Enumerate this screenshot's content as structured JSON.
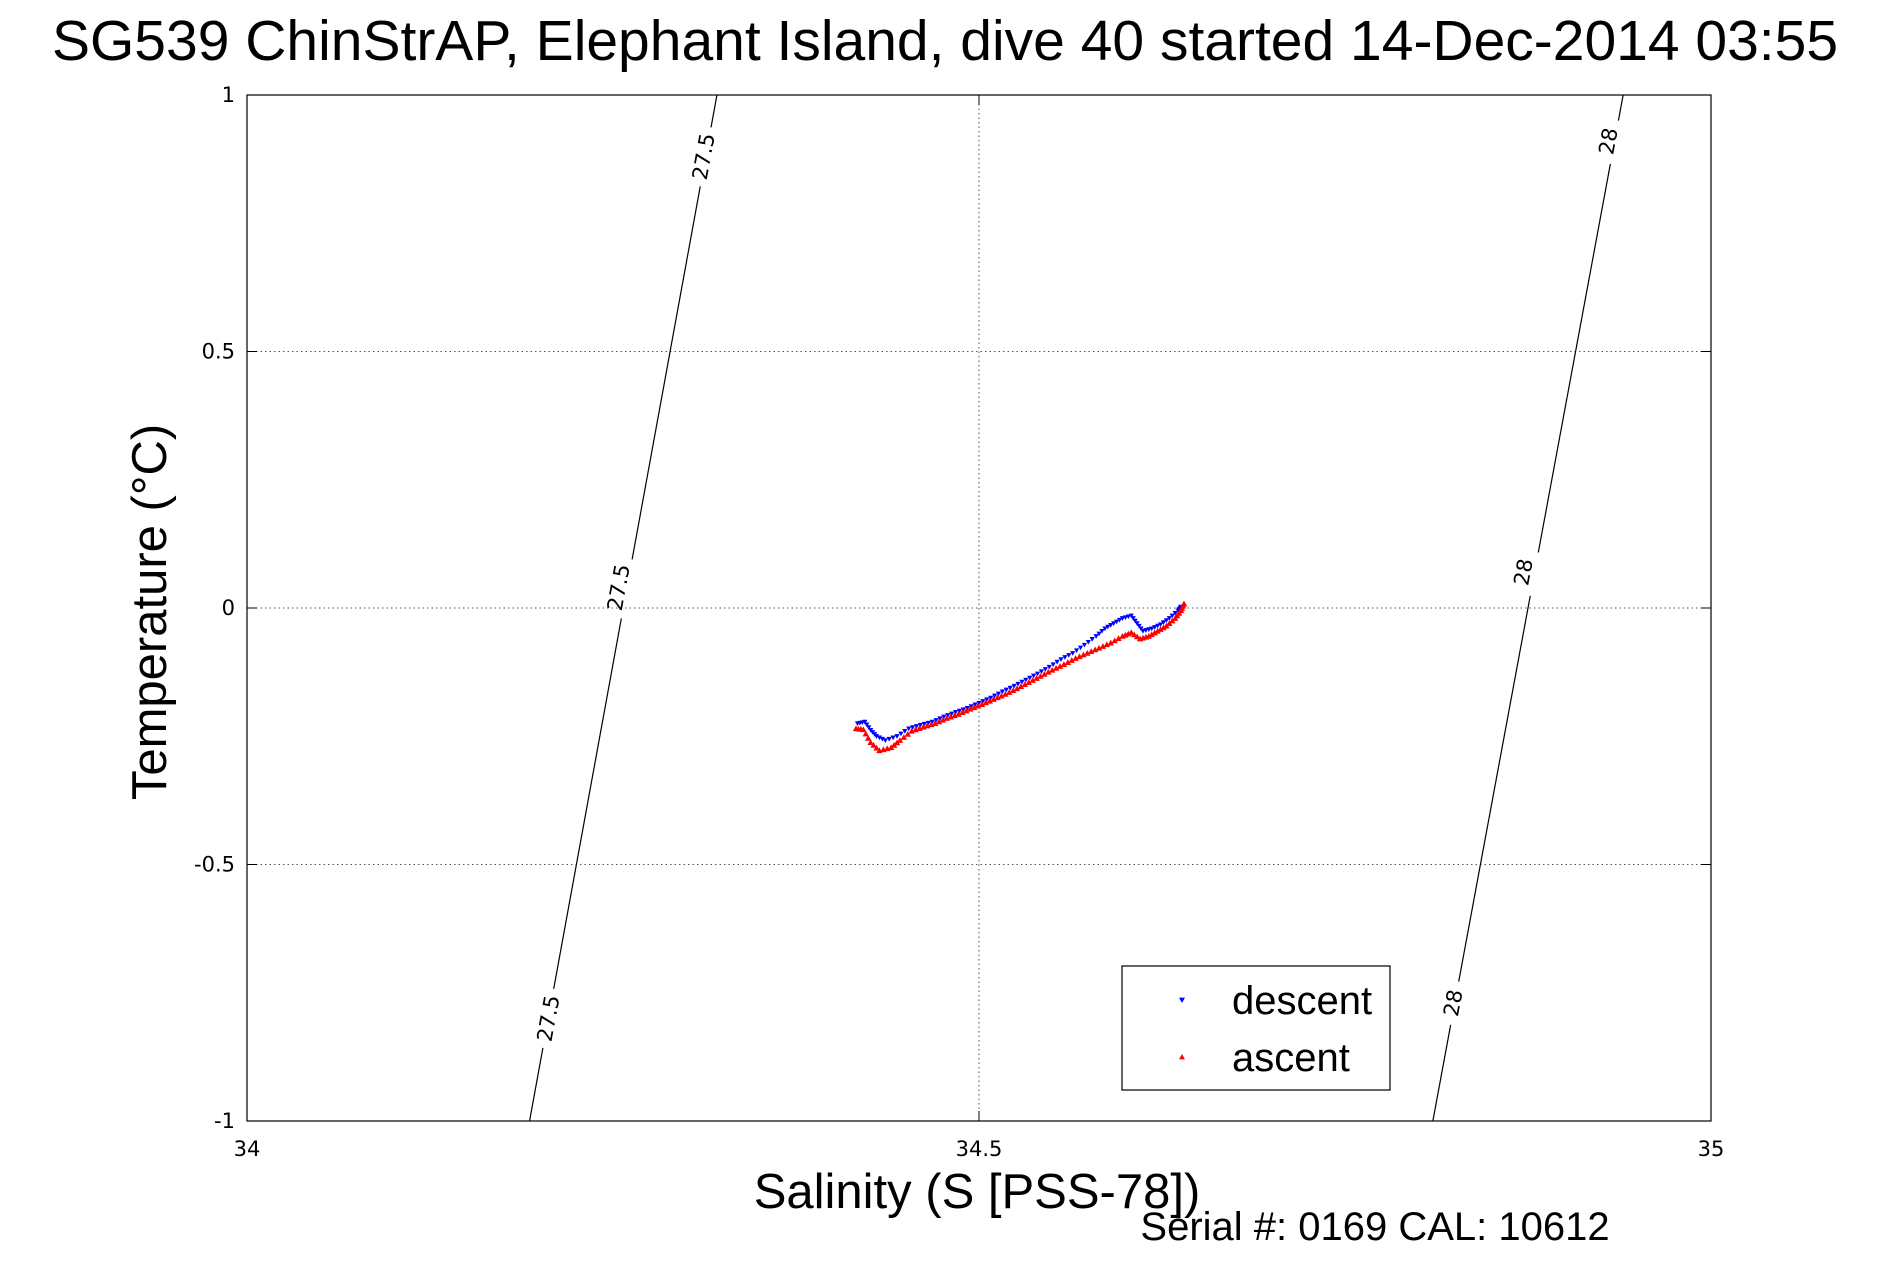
{
  "chart_data": {
    "type": "scatter",
    "title": "SG539 ChinStrAP, Elephant Island, dive 40 started 14-Dec-2014 03:55",
    "xlabel": "Salinity (S [PSS-78])",
    "ylabel": "Temperature (°C)",
    "xlim": [
      34,
      35
    ],
    "ylim": [
      -1,
      1
    ],
    "xticks": [
      34,
      34.5,
      35
    ],
    "xtick_labels": [
      "34",
      "34.5",
      "35"
    ],
    "yticks": [
      -1,
      -0.5,
      0,
      0.5,
      1
    ],
    "ytick_labels": [
      "-1",
      "-0.5",
      "0",
      "0.5",
      "1"
    ],
    "grid": true,
    "legend_position": "bottom-right",
    "series": [
      {
        "name": "descent",
        "color": "#0000ff",
        "marker": "triangle-down",
        "points": [
          [
            34.417,
            -0.225
          ],
          [
            34.422,
            -0.222
          ],
          [
            34.426,
            -0.238
          ],
          [
            34.43,
            -0.25
          ],
          [
            34.436,
            -0.258
          ],
          [
            34.444,
            -0.25
          ],
          [
            34.452,
            -0.235
          ],
          [
            34.46,
            -0.228
          ],
          [
            34.468,
            -0.222
          ],
          [
            34.476,
            -0.212
          ],
          [
            34.484,
            -0.203
          ],
          [
            34.492,
            -0.195
          ],
          [
            34.5,
            -0.185
          ],
          [
            34.508,
            -0.175
          ],
          [
            34.516,
            -0.163
          ],
          [
            34.524,
            -0.152
          ],
          [
            34.532,
            -0.14
          ],
          [
            34.54,
            -0.128
          ],
          [
            34.548,
            -0.115
          ],
          [
            34.556,
            -0.1
          ],
          [
            34.564,
            -0.088
          ],
          [
            34.572,
            -0.072
          ],
          [
            34.58,
            -0.055
          ],
          [
            34.586,
            -0.04
          ],
          [
            34.592,
            -0.03
          ],
          [
            34.598,
            -0.02
          ],
          [
            34.604,
            -0.015
          ],
          [
            34.608,
            -0.03
          ],
          [
            34.612,
            -0.045
          ],
          [
            34.618,
            -0.04
          ],
          [
            34.624,
            -0.032
          ],
          [
            34.63,
            -0.02
          ],
          [
            34.636,
            -0.005
          ],
          [
            34.638,
            0.002
          ]
        ]
      },
      {
        "name": "ascent",
        "color": "#ff0000",
        "marker": "triangle-up",
        "points": [
          [
            34.416,
            -0.235
          ],
          [
            34.421,
            -0.237
          ],
          [
            34.426,
            -0.262
          ],
          [
            34.432,
            -0.278
          ],
          [
            34.44,
            -0.272
          ],
          [
            34.446,
            -0.258
          ],
          [
            34.454,
            -0.24
          ],
          [
            34.462,
            -0.232
          ],
          [
            34.47,
            -0.225
          ],
          [
            34.478,
            -0.215
          ],
          [
            34.486,
            -0.207
          ],
          [
            34.494,
            -0.197
          ],
          [
            34.502,
            -0.188
          ],
          [
            34.51,
            -0.178
          ],
          [
            34.518,
            -0.168
          ],
          [
            34.526,
            -0.157
          ],
          [
            34.534,
            -0.145
          ],
          [
            34.542,
            -0.133
          ],
          [
            34.55,
            -0.121
          ],
          [
            34.558,
            -0.11
          ],
          [
            34.566,
            -0.098
          ],
          [
            34.574,
            -0.088
          ],
          [
            34.582,
            -0.078
          ],
          [
            34.59,
            -0.068
          ],
          [
            34.598,
            -0.055
          ],
          [
            34.604,
            -0.048
          ],
          [
            34.61,
            -0.06
          ],
          [
            34.616,
            -0.055
          ],
          [
            34.622,
            -0.045
          ],
          [
            34.628,
            -0.035
          ],
          [
            34.634,
            -0.02
          ],
          [
            34.638,
            -0.005
          ],
          [
            34.64,
            0.008
          ]
        ]
      }
    ],
    "density_contours": [
      {
        "value": "27.5",
        "from": [
          34.193,
          -1
        ],
        "to": [
          34.321,
          1
        ],
        "labels": [
          [
            34.206,
            -0.8
          ],
          [
            34.254,
            0.04
          ],
          [
            34.312,
            0.88
          ]
        ]
      },
      {
        "value": "28",
        "from": [
          34.81,
          -1
        ],
        "to": [
          34.94,
          1
        ],
        "labels": [
          [
            34.824,
            -0.77
          ],
          [
            34.872,
            0.07
          ],
          [
            34.93,
            0.91
          ]
        ]
      }
    ]
  },
  "footer": {
    "serial": "Serial #: 0169 CAL: 10612"
  }
}
